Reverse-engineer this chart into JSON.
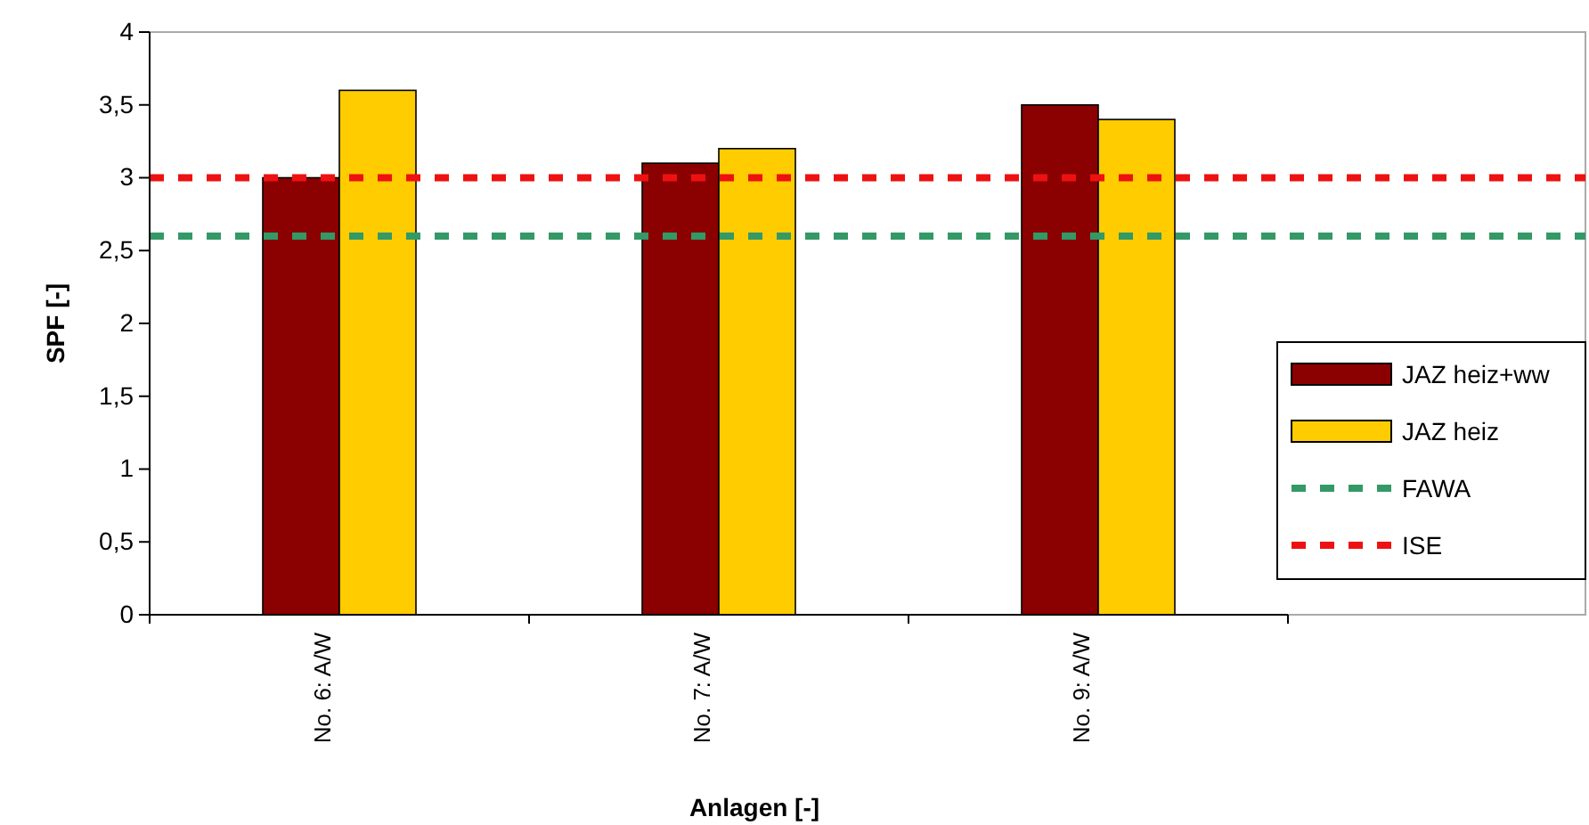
{
  "chart_data": {
    "type": "bar",
    "xlabel": "Anlagen [-]",
    "ylabel": "SPF [-]",
    "categories": [
      "No. 6: A/W",
      "No. 7: A/W",
      "No. 9: A/W"
    ],
    "series": [
      {
        "name": "JAZ heiz+ww",
        "color": "#8b0000",
        "values": [
          3.0,
          3.1,
          3.5
        ]
      },
      {
        "name": "JAZ heiz",
        "color": "#ffcc00",
        "values": [
          3.6,
          3.2,
          3.4
        ]
      }
    ],
    "ref_lines": [
      {
        "axis": "y",
        "value": 2.6,
        "label": "FAWA",
        "color": "#339966",
        "line_style": "dashed"
      },
      {
        "axis": "y",
        "value": 3.0,
        "label": "ISE",
        "color": "#ee1111",
        "line_style": "dashed"
      }
    ],
    "ylim": [
      0,
      4
    ],
    "yticks": [
      0,
      {
        "value": 0.5,
        "label": "0,5"
      },
      1,
      {
        "value": 1.5,
        "label": "1,5"
      },
      2,
      {
        "value": 2.5,
        "label": "2,5"
      },
      3,
      {
        "value": 3.5,
        "label": "3,5"
      },
      4
    ],
    "grid": false,
    "legend": "right"
  }
}
